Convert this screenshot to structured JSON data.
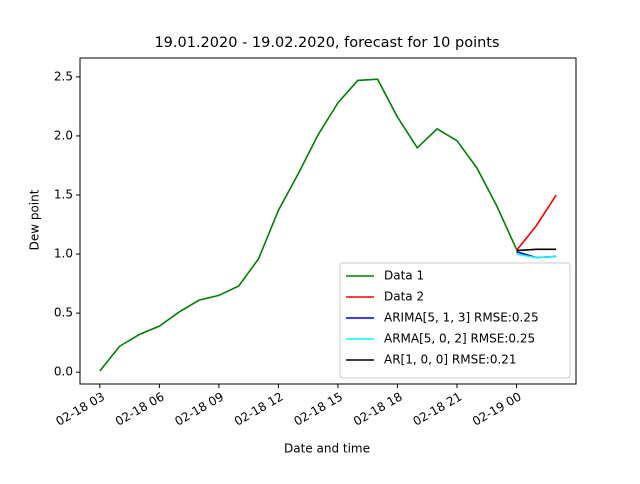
{
  "chart_data": {
    "type": "line",
    "title": "19.01.2020 - 19.02.2020, forecast for 10 points",
    "xlabel": "Date and time",
    "ylabel": "Dew point",
    "xlim": [
      "02-18 02",
      "02-19 03"
    ],
    "xticks": [
      "02-18 03",
      "02-18 06",
      "02-18 09",
      "02-18 12",
      "02-18 15",
      "02-18 18",
      "02-18 21",
      "02-19 00"
    ],
    "ylim": [
      -0.1,
      2.66
    ],
    "yticks": [
      {
        "value": 0,
        "label": "0.0"
      },
      {
        "value": 0.5,
        "label": "0.5"
      },
      {
        "value": 1,
        "label": "1.0"
      },
      {
        "value": 1.5,
        "label": "1.5"
      },
      {
        "value": 2,
        "label": "2.0"
      },
      {
        "value": 2.5,
        "label": "2.5"
      }
    ],
    "legend": "lower right",
    "series": [
      {
        "name": "Data 1",
        "color": "#008000",
        "x": [
          "02-18 03",
          "02-18 04",
          "02-18 05",
          "02-18 06",
          "02-18 07",
          "02-18 08",
          "02-18 09",
          "02-18 10",
          "02-18 11",
          "02-18 12",
          "02-18 13",
          "02-18 14",
          "02-18 15",
          "02-18 16",
          "02-18 17",
          "02-18 18",
          "02-18 19",
          "02-18 20",
          "02-18 21",
          "02-18 22",
          "02-18 23",
          "02-19 00"
        ],
        "values": [
          0.01,
          0.22,
          0.32,
          0.39,
          0.51,
          0.61,
          0.65,
          0.73,
          0.96,
          1.37,
          1.68,
          2.01,
          2.28,
          2.47,
          2.48,
          2.16,
          1.9,
          2.06,
          1.96,
          1.73,
          1.41,
          1.04
        ]
      },
      {
        "name": "Data 2",
        "color": "#ff0000",
        "x": [
          "02-19 00",
          "02-19 01",
          "02-19 02"
        ],
        "values": [
          1.03,
          1.24,
          1.5
        ]
      },
      {
        "name": "ARIMA[5, 1, 3] RMSE:0.25",
        "color": "#0000cd",
        "x": [
          "02-19 00",
          "02-19 01",
          "02-19 02"
        ],
        "values": [
          1.02,
          0.97,
          0.98
        ]
      },
      {
        "name": "ARMA[5, 0, 2] RMSE:0.25",
        "color": "#00ffff",
        "x": [
          "02-19 00",
          "02-19 01",
          "02-19 02"
        ],
        "values": [
          1.0,
          0.97,
          0.98
        ]
      },
      {
        "name": "AR[1, 0, 0] RMSE:0.21",
        "color": "#000000",
        "x": [
          "02-19 00",
          "02-19 01",
          "02-19 02"
        ],
        "values": [
          1.03,
          1.04,
          1.04
        ]
      }
    ]
  }
}
